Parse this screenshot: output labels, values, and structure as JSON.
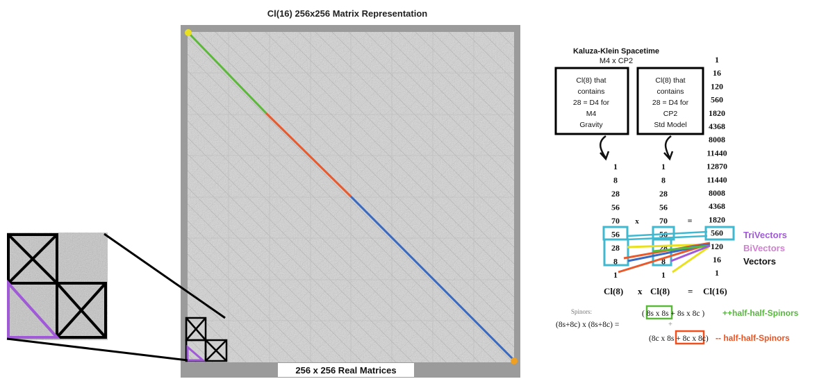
{
  "matrix": {
    "title": "Cl(16) 256x256 Matrix Representation",
    "caption": "256 x 256 Real Matrices"
  },
  "spacetime": {
    "title_line1": "Kaluza-Klein Spacetime",
    "title_line2": "M4 x CP2"
  },
  "boxes": {
    "left": [
      "Cl(8) that",
      "contains",
      "28 = D4 for",
      "M4",
      "Gravity"
    ],
    "right": [
      "Cl(8) that",
      "contains",
      "28 = D4 for",
      "CP2",
      "Std Model"
    ]
  },
  "columns": {
    "col1": [
      "1",
      "8",
      "28",
      "56",
      "70",
      "56",
      "28",
      "8",
      "1"
    ],
    "col2": [
      "1",
      "8",
      "28",
      "56",
      "70",
      "56",
      "28",
      "8",
      "1"
    ],
    "col3": [
      "1",
      "16",
      "120",
      "560",
      "1820",
      "4368",
      "8008",
      "11440",
      "12870",
      "11440",
      "8008",
      "4368",
      "1820",
      "560",
      "120",
      "16",
      "1"
    ],
    "x_sign": "x",
    "eq_sign": "="
  },
  "bottom_eq": {
    "a": "Cl(8)",
    "x": "x",
    "b": "Cl(8)",
    "eq": "=",
    "c": "Cl(16)"
  },
  "labels": {
    "trivectors": "TriVectors",
    "bivectors": "BiVectors",
    "vectors": "Vectors"
  },
  "spinors": {
    "label": "Spinors:",
    "lhs": "(8s+8c) x (8s+8c) =",
    "top": "( 8s x 8s + 8s x 8c )",
    "bottom": "(8c x 8s + 8c x 8c)",
    "plus_text": "++half-half-Spinors",
    "minus_text": "-- half-half-Spinors"
  },
  "colors": {
    "green": "#5cb83a",
    "red": "#e65a2e",
    "blue": "#3a6ac0",
    "yellow": "#e8e020",
    "orange": "#f0a020",
    "cyan": "#3fb8d0",
    "purple": "#a05ad8",
    "pink": "#d080d0",
    "greenlabel": "#55b83a",
    "redlabel": "#f0501e"
  }
}
